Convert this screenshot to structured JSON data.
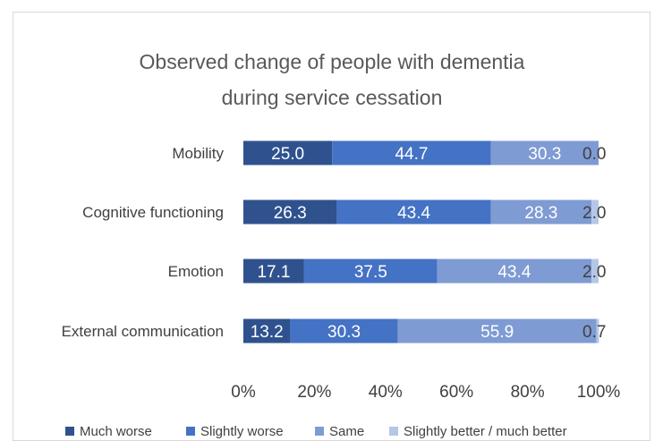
{
  "chart_data": {
    "type": "bar",
    "orientation": "horizontal",
    "stacked": "percent",
    "title": "Observed change of people with dementia during service cessation",
    "title_lines": [
      "Observed change of people with dementia",
      "during service cessation"
    ],
    "categories": [
      "Mobility",
      "Cognitive functioning",
      "Emotion",
      "External communication"
    ],
    "series": [
      {
        "name": "Much worse",
        "color": "#2f528f",
        "values": [
          25.0,
          26.3,
          17.1,
          13.2
        ],
        "labels": [
          "25.0",
          "26.3",
          "17.1",
          "13.2"
        ]
      },
      {
        "name": "Slightly worse",
        "color": "#4472c4",
        "values": [
          44.7,
          43.4,
          37.5,
          30.3
        ],
        "labels": [
          "44.7",
          "43.4",
          "37.5",
          "30.3"
        ]
      },
      {
        "name": "Same",
        "color": "#7f9bd3",
        "values": [
          30.3,
          28.3,
          43.4,
          55.9
        ],
        "labels": [
          "30.3",
          "28.3",
          "43.4",
          "55.9"
        ]
      },
      {
        "name": "Slightly better / much better",
        "color": "#b4c7e7",
        "values": [
          0.0,
          2.0,
          2.0,
          0.7
        ],
        "labels": [
          "0.0",
          "2.0",
          "2.0",
          "0.7"
        ]
      }
    ],
    "x_ticks": [
      "0%",
      "20%",
      "40%",
      "60%",
      "80%",
      "100%"
    ],
    "xlim": [
      0,
      100
    ],
    "grid": false,
    "legend_position": "bottom"
  }
}
